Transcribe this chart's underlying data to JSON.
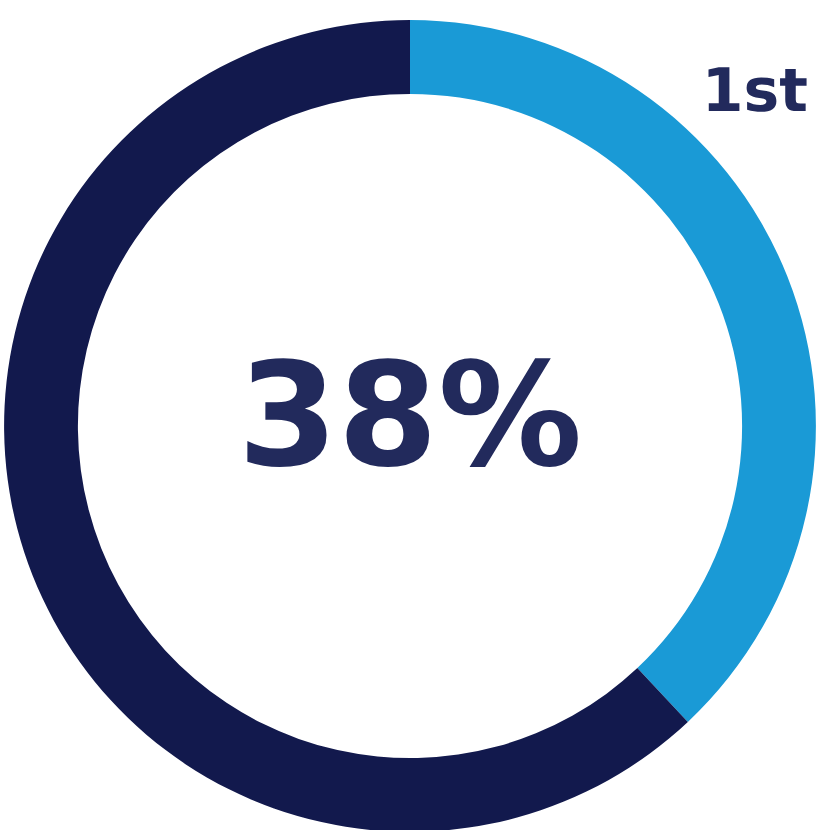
{
  "chart_data": {
    "type": "donut",
    "categories": [
      null,
      null
    ],
    "values": [
      38,
      62
    ],
    "colors": [
      "#1a9ad6",
      "#12194d"
    ],
    "value_labels": [
      "38%",
      null
    ],
    "annotations": [
      "1st"
    ]
  }
}
